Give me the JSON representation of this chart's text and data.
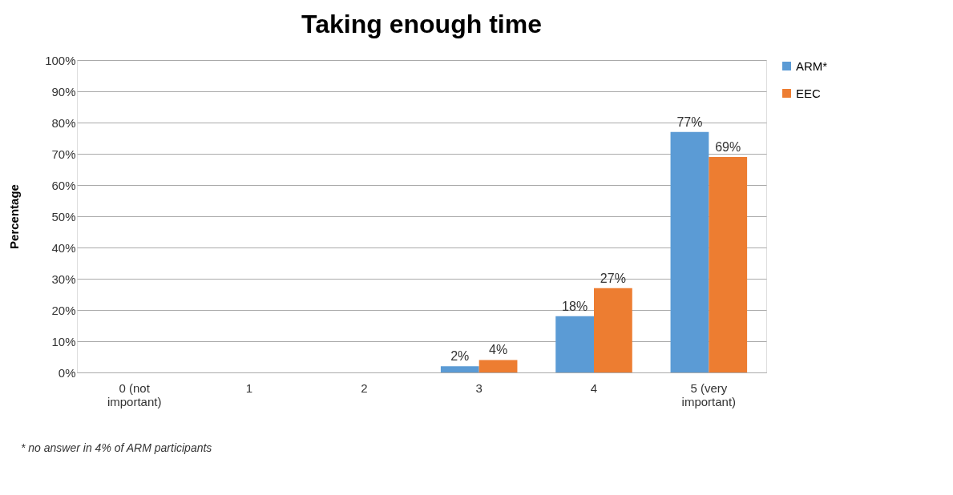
{
  "chart_data": {
    "type": "bar",
    "title": "Taking enough time",
    "ylabel": "Percentage",
    "categories": [
      "0 (not important)",
      "1",
      "2",
      "3",
      "4",
      "5 (very important)"
    ],
    "series": [
      {
        "name": "ARM*",
        "color": "#5b9bd5",
        "values": [
          null,
          null,
          null,
          2,
          18,
          77
        ],
        "value_labels": [
          null,
          null,
          null,
          "2%",
          "18%",
          "77%"
        ]
      },
      {
        "name": "EEC",
        "color": "#ed7d31",
        "values": [
          null,
          null,
          null,
          4,
          27,
          69
        ],
        "value_labels": [
          null,
          null,
          null,
          "4%",
          "27%",
          "69%"
        ]
      }
    ],
    "ylim": [
      0,
      100
    ],
    "yticks": [
      {
        "value": 0,
        "label": "0%"
      },
      {
        "value": 10,
        "label": "10%"
      },
      {
        "value": 20,
        "label": "20%"
      },
      {
        "value": 30,
        "label": "30%"
      },
      {
        "value": 40,
        "label": "40%"
      },
      {
        "value": 50,
        "label": "50%"
      },
      {
        "value": 60,
        "label": "60%"
      },
      {
        "value": 70,
        "label": "70%"
      },
      {
        "value": 80,
        "label": "80%"
      },
      {
        "value": 90,
        "label": "90%"
      },
      {
        "value": 100,
        "label": "100%"
      }
    ],
    "grid": "y",
    "legend": "right",
    "annotations": [
      "* no answer in 4% of ARM participants"
    ]
  }
}
